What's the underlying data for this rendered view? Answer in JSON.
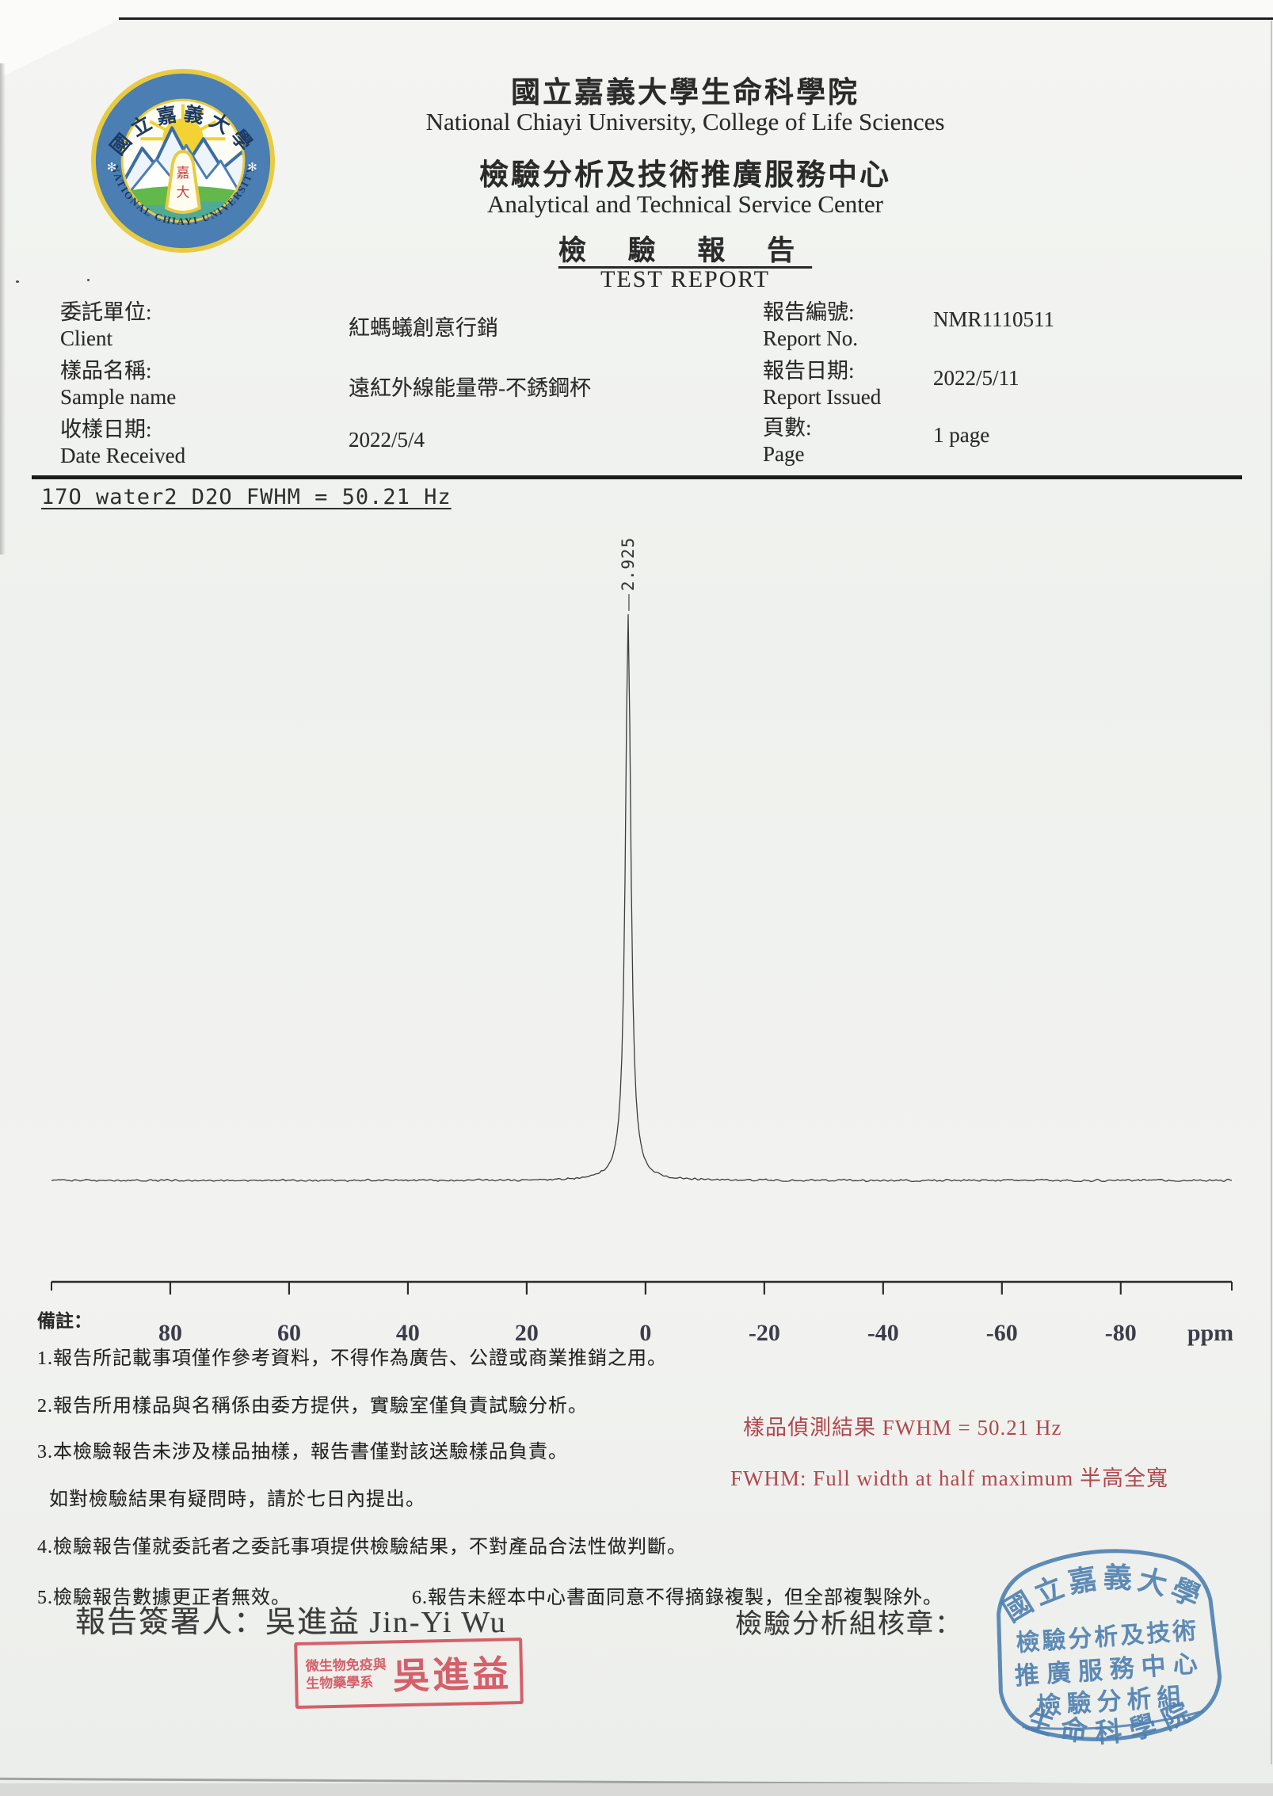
{
  "colors": {
    "red_print": "#b0484f",
    "stamp_red": "#d4606a",
    "stamp_blue": "#4d7fb0",
    "ink_black": "#262626"
  },
  "header": {
    "university_zh": "國立嘉義大學生命科學院",
    "university_en": "National Chiayi University, College of Life Sciences",
    "center_zh": "檢驗分析及技術推廣服務中心",
    "center_en": "Analytical and Technical Service Center",
    "report_title_zh": "檢 驗 報 告",
    "report_title_en": "TEST REPORT",
    "logo": {
      "ring_top": "國立嘉義大學",
      "ring_bottom": "NATIONAL CHIAYI UNIVERSITY",
      "star_left": "✻",
      "star_right": "✻",
      "bell_line1": "嘉",
      "bell_line2": "大"
    }
  },
  "info": {
    "client": {
      "label_zh": "委託單位:",
      "label_en": "Client",
      "value": "紅螞蟻創意行銷"
    },
    "sample": {
      "label_zh": "樣品名稱:",
      "label_en": "Sample name",
      "value": "遠紅外線能量帶-不銹鋼杯"
    },
    "received": {
      "label_zh": "收樣日期:",
      "label_en": "Date Received",
      "value": "2022/5/4"
    },
    "report_no": {
      "label_zh": "報告編號:",
      "label_en": "Report No.",
      "value": "NMR1110511"
    },
    "issued": {
      "label_zh": "報告日期:",
      "label_en": "Report Issued",
      "value": "2022/5/11"
    },
    "pages": {
      "label_zh": "頁數:",
      "label_en": "Page",
      "value": "1 page"
    }
  },
  "spectrum": {
    "header_line": "17O water2 D2O FWHM = 50.21 Hz"
  },
  "chart_data": {
    "type": "line",
    "title": "17O water2 D2O FWHM = 50.21 Hz",
    "xlabel": "ppm",
    "x_ticks": [
      80,
      60,
      40,
      20,
      0,
      -20,
      -40,
      -60,
      -80
    ],
    "x_range": [
      100,
      -98.7
    ],
    "x_axis_reversed": true,
    "grid": false,
    "peaks": [
      {
        "ppm": 2.925,
        "label": "2.925",
        "relative_height": 1.0,
        "fwhm_hz": 50.21
      }
    ],
    "description": "17O NMR spectrum of water in D2O: flat noisy baseline with one sharp peak at 2.925 ppm"
  },
  "notes": {
    "label": "備註：",
    "items": [
      "1.報告所記載事項僅作參考資料，不得作為廣告、公證或商業推銷之用。",
      "2.報告所用樣品與名稱係由委方提供，實驗室僅負責試驗分析。",
      "3.本檢驗報告未涉及樣品抽樣，報告書僅對該送驗樣品負責。",
      "如對檢驗結果有疑問時，請於七日內提出。",
      "4.檢驗報告僅就委託者之委託事項提供檢驗結果，不對產品合法性做判斷。",
      "5.檢驗報告數據更正者無效。",
      "6.報告未經本中心書面同意不得摘錄複製，但全部複製除外。"
    ]
  },
  "results": {
    "line1": "樣品偵測結果 FWHM = 50.21 Hz",
    "line2": "FWHM: Full width at half maximum 半高全寬"
  },
  "signature": {
    "signer_label": "報告簽署人：",
    "signer_name": "吳進益 Jin-Yi Wu",
    "approval_label": "檢驗分析組核章："
  },
  "stamps": {
    "signer_stamp": {
      "dept_line1": "微生物免疫與",
      "dept_line2": "生物藥學系",
      "name": "吳進益"
    },
    "center_stamp": {
      "arc_top": "國立嘉義大學",
      "line1": "檢驗分析及技術",
      "line2": "推廣服務中心",
      "line3": "檢驗分析組",
      "arc_bottom": "生命科學院"
    }
  }
}
